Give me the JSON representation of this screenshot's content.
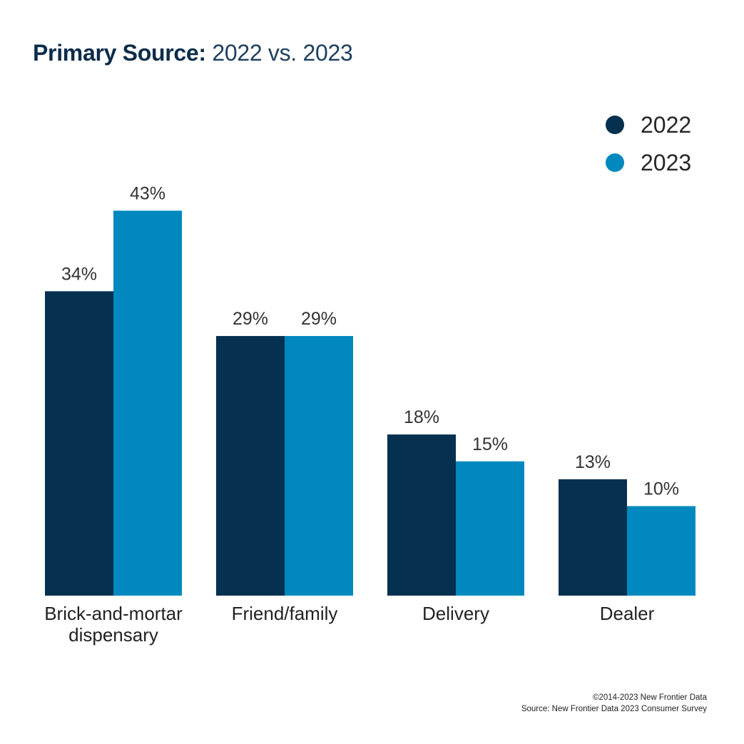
{
  "title": {
    "bold": "Primary Source:",
    "light": "2022 vs. 2023"
  },
  "colors": {
    "y2022": "#06304f",
    "y2023": "#0189bf"
  },
  "chart_data": {
    "type": "bar",
    "categories": [
      [
        "Brick-and-mortar",
        "dispensary"
      ],
      [
        "Friend/family"
      ],
      [
        "Delivery"
      ],
      [
        "Dealer"
      ]
    ],
    "series": [
      {
        "name": "2022",
        "values": [
          34,
          29,
          18,
          13
        ],
        "labels": [
          "34%",
          "29%",
          "18%",
          "13%"
        ]
      },
      {
        "name": "2023",
        "values": [
          43,
          29,
          15,
          10
        ],
        "labels": [
          "43%",
          "29%",
          "15%",
          "10%"
        ]
      }
    ],
    "legend_position": "top-right",
    "grid": false
  },
  "legend": [
    {
      "label": "2022",
      "color_key": "y2022"
    },
    {
      "label": "2023",
      "color_key": "y2023"
    }
  ],
  "footer": {
    "copyright": "©2014-2023  New Frontier Data",
    "source": "Source: New Frontier Data 2023 Consumer Survey"
  }
}
